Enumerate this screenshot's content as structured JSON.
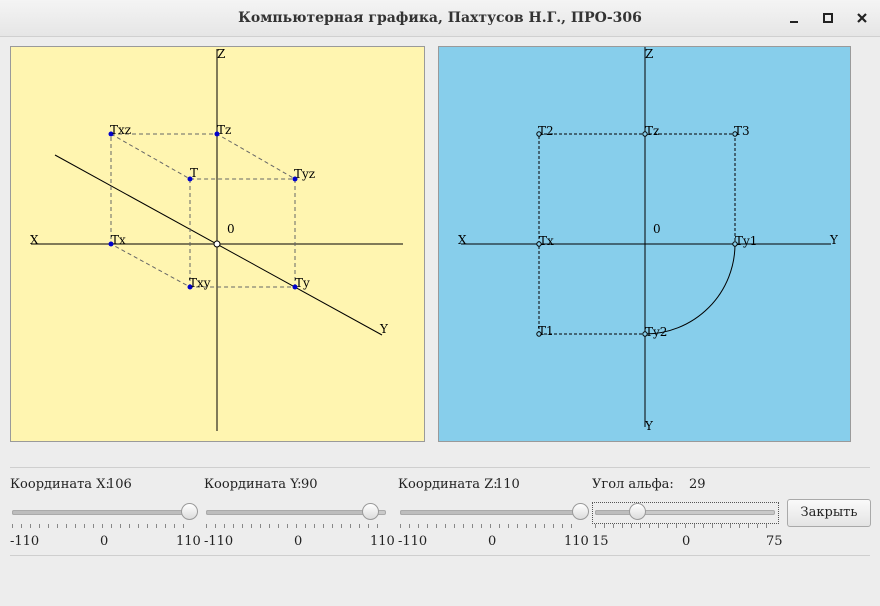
{
  "window": {
    "title": "Компьютерная графика, Пахтусов Н.Г., ПРО-306",
    "minimize": "minimize",
    "maximize": "maximize",
    "close": "close"
  },
  "left_view": {
    "labels": {
      "z": "Z",
      "x": "X",
      "y": "Y",
      "origin": "0",
      "t": "T",
      "tx": "Tx",
      "ty": "Ty",
      "tz": "Tz",
      "txy": "Txy",
      "txz": "Txz",
      "tyz": "Tyz"
    },
    "colors": {
      "background": "#fff5b0",
      "point": "#0000cc"
    }
  },
  "right_view": {
    "labels": {
      "z": "Z",
      "x": "X",
      "y_right": "Y",
      "y_bottom": "Y",
      "origin": "0",
      "t1": "T1",
      "t2": "T2",
      "t3": "T3",
      "tx": "Tx",
      "tz": "Tz",
      "ty1": "Ty1",
      "ty2": "Ty2"
    },
    "colors": {
      "background": "#87ceeb"
    }
  },
  "controls": {
    "x": {
      "label": "Координата X:",
      "value": "106",
      "min": "-110",
      "mid": "0",
      "max": "110",
      "fraction": 0.982
    },
    "y": {
      "label": "Координата Y:",
      "value": "90",
      "min": "-110",
      "mid": "0",
      "max": "110",
      "fraction": 0.909
    },
    "z": {
      "label": "Координата Z:",
      "value": "110",
      "min": "-110",
      "mid": "0",
      "max": "110",
      "fraction": 1.0
    },
    "alpha": {
      "label": "Угол альфа:",
      "value": "29",
      "min": "15",
      "mid": "0",
      "max": "75",
      "fraction": 0.233
    },
    "close_button": "Закрыть"
  }
}
